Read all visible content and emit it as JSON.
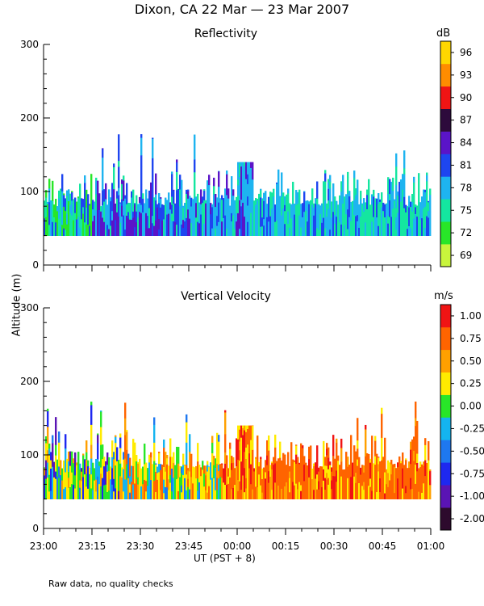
{
  "title": "Dixon, CA 22 Mar — 23 Mar 2007",
  "footnote": "Raw data, no quality checks",
  "colors": {
    "reflectivity": [
      "#c8f53c",
      "#28e628",
      "#14e6a0",
      "#1eb4f0",
      "#1e46f0",
      "#5a14c8",
      "#2d0a3c",
      "#f01414",
      "#ff8c00",
      "#ffd700"
    ],
    "velocity": [
      "#2d0a2d",
      "#5a14b4",
      "#1e28f0",
      "#1e78f0",
      "#14b4f0",
      "#28e628",
      "#ffeb00",
      "#ffa000",
      "#ff6400",
      "#f01414"
    ]
  },
  "chart_data": [
    {
      "type": "heatmap",
      "title": "Reflectivity",
      "ylabel": "Altitude (m)",
      "xlabel": "UT  (PST + 8)",
      "xticks": [
        "23:00",
        "23:15",
        "23:30",
        "23:45",
        "00:00",
        "00:15",
        "00:30",
        "00:45",
        "01:00"
      ],
      "yticks": [
        0,
        100,
        200,
        300
      ],
      "ylim": [
        0,
        300
      ],
      "xlim_minutes": [
        0,
        120
      ],
      "colorbar": {
        "unit": "dB",
        "ticks": [
          69,
          72,
          75,
          78,
          81,
          84,
          87,
          90,
          93,
          96
        ]
      },
      "data_altitude_range_m": [
        40,
        180
      ],
      "dominant_value_by_period": [
        {
          "from": "23:00",
          "to": "23:15",
          "value": 75
        },
        {
          "from": "23:15",
          "to": "23:45",
          "value": 81
        },
        {
          "from": "23:45",
          "to": "00:05",
          "value": 78
        },
        {
          "from": "00:05",
          "to": "01:00",
          "value": 78
        }
      ]
    },
    {
      "type": "heatmap",
      "title": "Vertical Velocity",
      "ylabel": "Altitude (m)",
      "xlabel": "UT  (PST + 8)",
      "xticks": [
        "23:00",
        "23:15",
        "23:30",
        "23:45",
        "00:00",
        "00:15",
        "00:30",
        "00:45",
        "01:00"
      ],
      "yticks": [
        0,
        100,
        200,
        300
      ],
      "ylim": [
        0,
        300
      ],
      "xlim_minutes": [
        0,
        120
      ],
      "colorbar": {
        "unit": "m/s",
        "ticks": [
          "1.00",
          "0.75",
          "0.50",
          "0.25",
          "0.00",
          "-0.25",
          "-0.50",
          "-0.75",
          "-1.00",
          "-2.00"
        ]
      },
      "data_altitude_range_m": [
        40,
        180
      ],
      "dominant_value_by_period": [
        {
          "from": "23:00",
          "to": "23:45",
          "value": 0.25
        },
        {
          "from": "23:45",
          "to": "00:05",
          "value": 0.75
        },
        {
          "from": "00:05",
          "to": "01:00",
          "value": 0.75
        }
      ]
    }
  ],
  "ylabel": "Altitude (m)"
}
